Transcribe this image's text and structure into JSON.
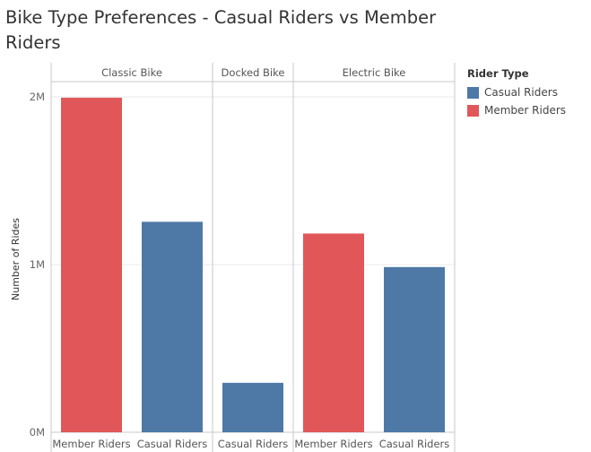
{
  "title": "Bike Type Preferences - Casual Riders vs Member Riders",
  "colors": {
    "member": "#e15759",
    "casual": "#4e79a7",
    "grid": "#e8e8e8",
    "frame": "#c8c8c8"
  },
  "legend": {
    "title": "Rider Type",
    "items": [
      {
        "label": "Casual Riders",
        "color": "#4e79a7"
      },
      {
        "label": "Member Riders",
        "color": "#e15759"
      }
    ]
  },
  "chart_data": {
    "type": "bar",
    "ylabel": "Number of Rides",
    "ylim": [
      0,
      2000000
    ],
    "yticks": [
      {
        "value": 2000000,
        "label": "2M"
      },
      {
        "value": 1000000,
        "label": "1M"
      },
      {
        "value": 0,
        "label": "0M"
      }
    ],
    "panels": [
      {
        "name": "Classic Bike",
        "bars": [
          {
            "category": "Member Riders",
            "rider": "member",
            "value": 1995000
          },
          {
            "category": "Casual Riders",
            "rider": "casual",
            "value": 1255000
          }
        ]
      },
      {
        "name": "Docked Bike",
        "bars": [
          {
            "category": "Casual Riders",
            "rider": "casual",
            "value": 295000
          }
        ]
      },
      {
        "name": "Electric Bike",
        "bars": [
          {
            "category": "Member Riders",
            "rider": "member",
            "value": 1185000
          },
          {
            "category": "Casual Riders",
            "rider": "casual",
            "value": 985000
          }
        ]
      }
    ]
  }
}
